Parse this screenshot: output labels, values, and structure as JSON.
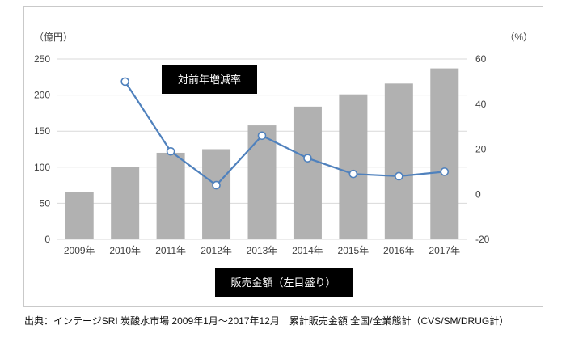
{
  "caption": "出典：インテージSRI 炭酸水市場 2009年1月～2017年12月　累計販売金額 全国/全業態計（CVS/SM/DRUG計）",
  "chart_data": {
    "type": "bar",
    "subtype": "bar+line combo, dual axis",
    "categories": [
      "2009年",
      "2010年",
      "2011年",
      "2012年",
      "2013年",
      "2014年",
      "2015年",
      "2016年",
      "2017年"
    ],
    "series": [
      {
        "name": "販売金額（左目盛り）",
        "type": "bar",
        "axis": "left",
        "color": "#b1b1b1",
        "values": [
          66,
          100,
          120,
          125,
          158,
          184,
          201,
          216,
          237
        ]
      },
      {
        "name": "対前年増減率",
        "type": "line",
        "axis": "right",
        "color": "#4f81bd",
        "marker_fill": "#ffffff",
        "values": [
          null,
          50,
          19,
          4,
          26,
          16,
          9,
          8,
          10
        ]
      }
    ],
    "left_axis": {
      "label": "（億円）",
      "min": 0,
      "max": 250,
      "ticks": [
        0,
        50,
        100,
        150,
        200,
        250
      ]
    },
    "right_axis": {
      "label": "（%）",
      "min": -20,
      "max": 60,
      "ticks": [
        -20,
        0,
        20,
        40,
        60
      ]
    },
    "grid": true,
    "legend_position": "bottom-center callout box",
    "annotations": {
      "line_label": "対前年増減率",
      "bar_legend": "販売金額（左目盛り）"
    },
    "colors": {
      "grid": "#d9d9d9",
      "text": "#404040",
      "frame_border": "#c9c9c9",
      "callout_bg": "#000000",
      "callout_text": "#ffffff"
    }
  }
}
